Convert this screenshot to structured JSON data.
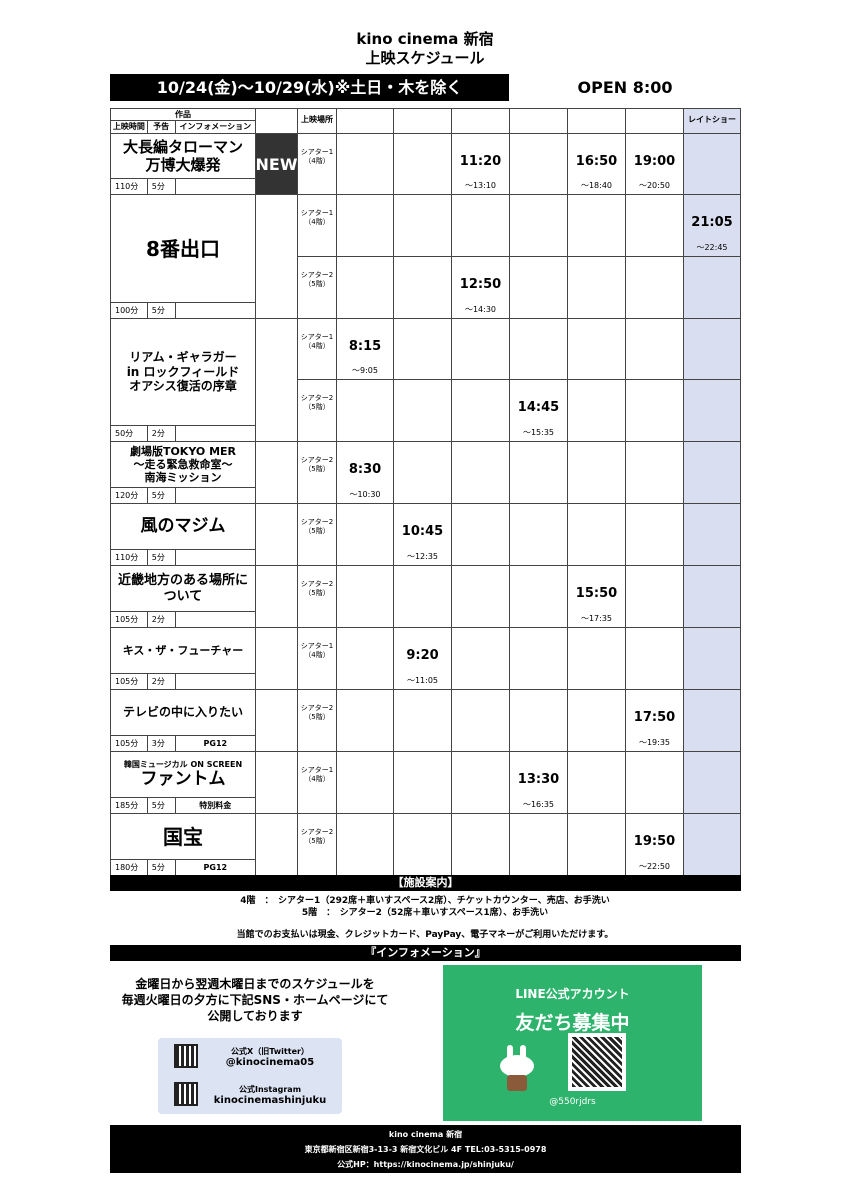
{
  "header": {
    "cinema": "kino cinema 新宿",
    "subtitle": "上映スケジュール",
    "period": "10/24(金)～10/29(水)※土日・木を除く",
    "open": "OPEN 8:00"
  },
  "table_header": {
    "works": "作品",
    "runtime": "上映時間",
    "trailer": "予告",
    "info": "インフォメーション",
    "venue": "上映場所",
    "late": "レイトショー"
  },
  "colors": {
    "late_bg": "#d9dff0",
    "new_bg": "#333333",
    "line_green": "#2db36b",
    "social_bg": "#dce3f3"
  },
  "movies": [
    {
      "title_lines": [
        "大長編タローマン",
        "万博大爆発"
      ],
      "badge": "NEW",
      "runtime": "110分",
      "trailer": "5分",
      "info": "",
      "screens": [
        {
          "venue": [
            "シアター1",
            "（4階）"
          ],
          "shows": [
            {
              "col": 2,
              "start": "11:20",
              "end": "～13:10"
            },
            {
              "col": 4,
              "start": "16:50",
              "end": "～18:40"
            },
            {
              "col": 5,
              "start": "19:00",
              "end": "～20:50"
            }
          ]
        }
      ]
    },
    {
      "title_lines": [
        "8番出口"
      ],
      "runtime": "100分",
      "trailer": "5分",
      "info": "",
      "screens": [
        {
          "venue": [
            "シアター1",
            "（4階）"
          ],
          "shows": [
            {
              "col": 6,
              "start": "21:05",
              "end": "～22:45"
            }
          ]
        },
        {
          "venue": [
            "シアター2",
            "（5階）"
          ],
          "shows": [
            {
              "col": 2,
              "start": "12:50",
              "end": "～14:30"
            }
          ]
        }
      ]
    },
    {
      "title_lines": [
        "リアム・ギャラガー",
        "in ロックフィールド",
        "オアシス復活の序章"
      ],
      "runtime": "50分",
      "trailer": "2分",
      "info": "",
      "screens": [
        {
          "venue": [
            "シアター1",
            "（4階）"
          ],
          "shows": [
            {
              "col": 0,
              "start": "8:15",
              "end": "～9:05"
            }
          ]
        },
        {
          "venue": [
            "シアター2",
            "（5階）"
          ],
          "shows": [
            {
              "col": 3,
              "start": "14:45",
              "end": "～15:35"
            }
          ]
        }
      ]
    },
    {
      "title_lines": [
        "劇場版TOKYO MER",
        "～走る緊急救命室～",
        "南海ミッション"
      ],
      "runtime": "120分",
      "trailer": "5分",
      "info": "",
      "screens": [
        {
          "venue": [
            "シアター2",
            "（5階）"
          ],
          "shows": [
            {
              "col": 0,
              "start": "8:30",
              "end": "～10:30"
            }
          ]
        }
      ]
    },
    {
      "title_lines": [
        "風のマジム"
      ],
      "runtime": "110分",
      "trailer": "5分",
      "info": "",
      "screens": [
        {
          "venue": [
            "シアター2",
            "（5階）"
          ],
          "shows": [
            {
              "col": 1,
              "start": "10:45",
              "end": "～12:35"
            }
          ]
        }
      ]
    },
    {
      "title_lines": [
        "近畿地方のある場所に",
        "ついて"
      ],
      "runtime": "105分",
      "trailer": "2分",
      "info": "",
      "screens": [
        {
          "venue": [
            "シアター2",
            "（5階）"
          ],
          "shows": [
            {
              "col": 4,
              "start": "15:50",
              "end": "～17:35"
            }
          ]
        }
      ]
    },
    {
      "title_lines": [
        "キス・ザ・フューチャー"
      ],
      "runtime": "105分",
      "trailer": "2分",
      "info": "",
      "screens": [
        {
          "venue": [
            "シアター1",
            "（4階）"
          ],
          "shows": [
            {
              "col": 1,
              "start": "9:20",
              "end": "～11:05"
            }
          ]
        }
      ]
    },
    {
      "title_lines": [
        "テレビの中に入りたい"
      ],
      "runtime": "105分",
      "trailer": "3分",
      "info": "PG12",
      "screens": [
        {
          "venue": [
            "シアター2",
            "（5階）"
          ],
          "shows": [
            {
              "col": 5,
              "start": "17:50",
              "end": "～19:35"
            }
          ]
        }
      ]
    },
    {
      "title_lines": [
        "韓国ミュージカル ON SCREEN",
        "ファントム"
      ],
      "runtime": "185分",
      "trailer": "5分",
      "info": "特別料金",
      "screens": [
        {
          "venue": [
            "シアター1",
            "（4階）"
          ],
          "shows": [
            {
              "col": 3,
              "start": "13:30",
              "end": "～16:35"
            }
          ]
        }
      ]
    },
    {
      "title_lines": [
        "国宝"
      ],
      "runtime": "180分",
      "trailer": "5分",
      "info": "PG12",
      "screens": [
        {
          "venue": [
            "シアター2",
            "（5階）"
          ],
          "shows": [
            {
              "col": 5,
              "start": "19:50",
              "end": "～22:50"
            }
          ]
        }
      ]
    }
  ],
  "facility": {
    "heading": "【施設案内】",
    "floor4": "4階　：　シアター1（292席＋車いすスペース2席）、チケットカウンター、売店、お手洗い",
    "floor5": "5階　：　シアター2（52席＋車いすスペース1席）、お手洗い",
    "payment": "当館でのお支払いは現金、クレジットカード、PayPay、電子マネーがご利用いただけます。"
  },
  "information": {
    "heading": "『インフォメーション』",
    "notice_lines": [
      "金曜日から翌週木曜日までのスケジュールを",
      "毎週火曜日の夕方に下記SNS・ホームページにて",
      "公開しております"
    ],
    "x_label": "公式X（旧Twitter）",
    "x_handle": "@kinocinema05",
    "ig_label": "公式Instagram",
    "ig_handle": "kinocinemashinjuku",
    "line_title": "LINE公式アカウント",
    "line_headline": "友だち募集中",
    "line_id": "@550rjdrs"
  },
  "footer": {
    "name": "kino cinema 新宿",
    "address": "東京都新宿区新宿3-13-3 新宿文化ビル 4F TEL:03-5315-0978",
    "hp": "公式HP：https://kinocinema.jp/shinjuku/"
  }
}
